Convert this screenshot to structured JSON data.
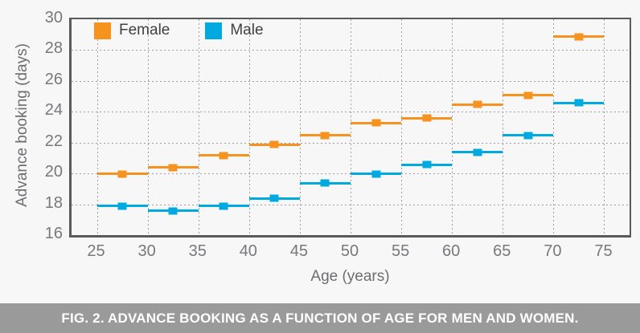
{
  "figure": {
    "caption": "FIG. 2. ADVANCE BOOKING AS A FUNCTION OF AGE FOR MEN AND WOMEN.",
    "background_color": "#f7f7f7",
    "caption_bar_color": "#9a9a9a",
    "axis_border_color": "#58595b",
    "grid_color": "#9d9fa2",
    "axis_text_color": "#6d6e71"
  },
  "chart_data": {
    "type": "line",
    "subtype": "horizontal-step-segments-per-age-bin",
    "title": "",
    "xlabel": "Age (years)",
    "ylabel": "Advance booking (days)",
    "xlim": [
      22.5,
      77.5
    ],
    "ylim": [
      16,
      30
    ],
    "x_ticks": [
      25,
      30,
      35,
      40,
      45,
      50,
      55,
      60,
      65,
      70,
      75
    ],
    "y_ticks": [
      16,
      18,
      20,
      22,
      24,
      26,
      28,
      30
    ],
    "grid": true,
    "legend_position": "top-left-inside",
    "marker": "square",
    "bins": [
      [
        25,
        30
      ],
      [
        30,
        35
      ],
      [
        35,
        40
      ],
      [
        40,
        45
      ],
      [
        45,
        50
      ],
      [
        50,
        55
      ],
      [
        55,
        60
      ],
      [
        60,
        65
      ],
      [
        65,
        70
      ],
      [
        70,
        75
      ]
    ],
    "bin_centers": [
      27.5,
      32.5,
      37.5,
      42.5,
      47.5,
      52.5,
      57.5,
      62.5,
      67.5,
      72.5
    ],
    "series": [
      {
        "name": "Female",
        "color": "#F6921E",
        "values": [
          20.0,
          20.4,
          21.2,
          21.9,
          22.5,
          23.3,
          23.6,
          24.5,
          25.1,
          28.9
        ]
      },
      {
        "name": "Male",
        "color": "#00A9E0",
        "values": [
          17.9,
          17.6,
          17.9,
          18.4,
          19.4,
          20.0,
          20.6,
          21.4,
          22.5,
          24.6
        ]
      }
    ]
  }
}
